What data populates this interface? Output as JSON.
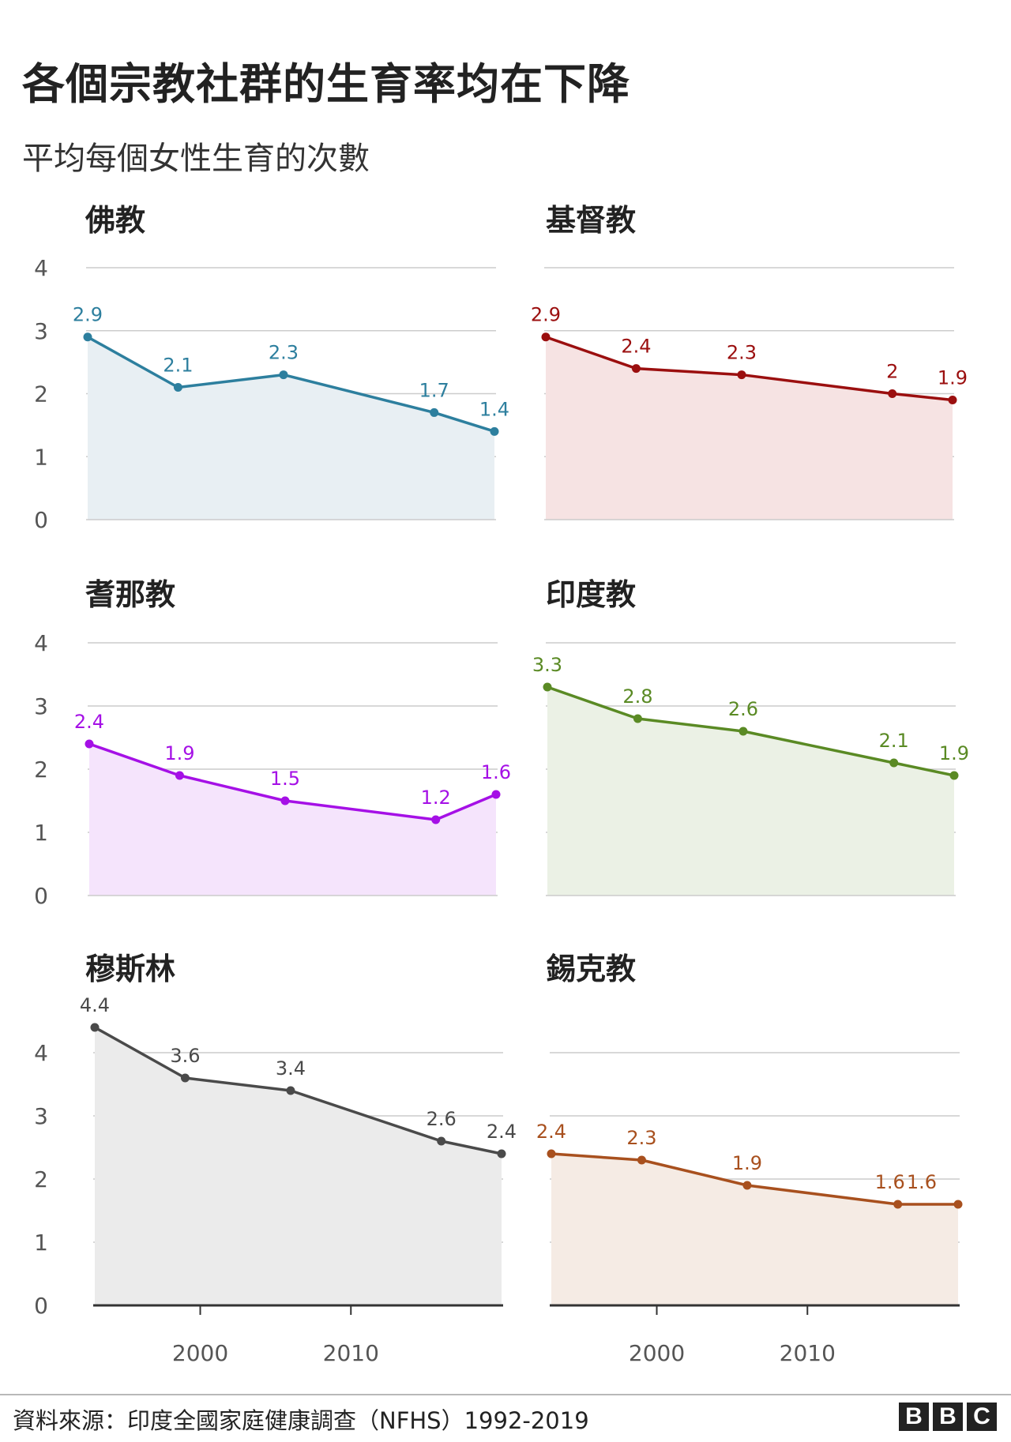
{
  "title": "各個宗教社群的生育率均在下降",
  "subtitle": "平均每個女性生育的次數",
  "source": "資料來源：印度全國家庭健康調查（NFHS）1992-2019",
  "logo": [
    "B",
    "B",
    "C"
  ],
  "chart_data": [
    {
      "type": "area",
      "title": "佛教",
      "color": "#2d7f9e",
      "fill": "#e8eff3",
      "x": [
        1993,
        1999,
        2006,
        2016,
        2020
      ],
      "values": [
        2.9,
        2.1,
        2.3,
        1.7,
        1.4
      ],
      "labels": [
        "2.9",
        "2.1",
        "2.3",
        "1.7",
        "1.4"
      ],
      "ylim": [
        0,
        4
      ],
      "yticks": [
        "0",
        "1",
        "2",
        "3",
        "4"
      ],
      "xticks": []
    },
    {
      "type": "area",
      "title": "基督教",
      "color": "#9b0f0f",
      "fill": "#f6e3e3",
      "x": [
        1993,
        1999,
        2006,
        2016,
        2020
      ],
      "values": [
        2.9,
        2.4,
        2.3,
        2.0,
        1.9
      ],
      "labels": [
        "2.9",
        "2.4",
        "2.3",
        "2",
        "1.9"
      ],
      "ylim": [
        0,
        4
      ],
      "yticks": [],
      "xticks": []
    },
    {
      "type": "area",
      "title": "耆那教",
      "color": "#a510e6",
      "fill": "#f5e4fc",
      "x": [
        1993,
        1999,
        2006,
        2016,
        2020
      ],
      "values": [
        2.4,
        1.9,
        1.5,
        1.2,
        1.6
      ],
      "labels": [
        "2.4",
        "1.9",
        "1.5",
        "1.2",
        "1.6"
      ],
      "ylim": [
        0,
        4
      ],
      "yticks": [
        "0",
        "1",
        "2",
        "3",
        "4"
      ],
      "xticks": []
    },
    {
      "type": "area",
      "title": "印度教",
      "color": "#5a8a24",
      "fill": "#ebf1e5",
      "x": [
        1993,
        1999,
        2006,
        2016,
        2020
      ],
      "values": [
        3.3,
        2.8,
        2.6,
        2.1,
        1.9
      ],
      "labels": [
        "3.3",
        "2.8",
        "2.6",
        "2.1",
        "1.9"
      ],
      "ylim": [
        0,
        4
      ],
      "yticks": [],
      "xticks": []
    },
    {
      "type": "area",
      "title": "穆斯林",
      "color": "#4a4a4a",
      "fill": "#ebebeb",
      "x": [
        1993,
        1999,
        2006,
        2016,
        2020
      ],
      "values": [
        4.4,
        3.6,
        3.4,
        2.6,
        2.4
      ],
      "labels": [
        "4.4",
        "3.6",
        "3.4",
        "2.6",
        "2.4"
      ],
      "ylim": [
        0,
        4
      ],
      "yticks": [
        "0",
        "1",
        "2",
        "3",
        "4"
      ],
      "xticks": [
        "2000",
        "2010"
      ]
    },
    {
      "type": "area",
      "title": "錫克教",
      "color": "#a8501e",
      "fill": "#f5ebe4",
      "x": [
        1993,
        1999,
        2006,
        2016,
        2020
      ],
      "values": [
        2.4,
        2.3,
        1.9,
        1.6,
        1.6
      ],
      "labels": [
        "2.4",
        "2.3",
        "1.9",
        "1.6",
        "1.6"
      ],
      "ylim": [
        0,
        4
      ],
      "yticks": [],
      "xticks": [
        "2000",
        "2010"
      ]
    }
  ]
}
